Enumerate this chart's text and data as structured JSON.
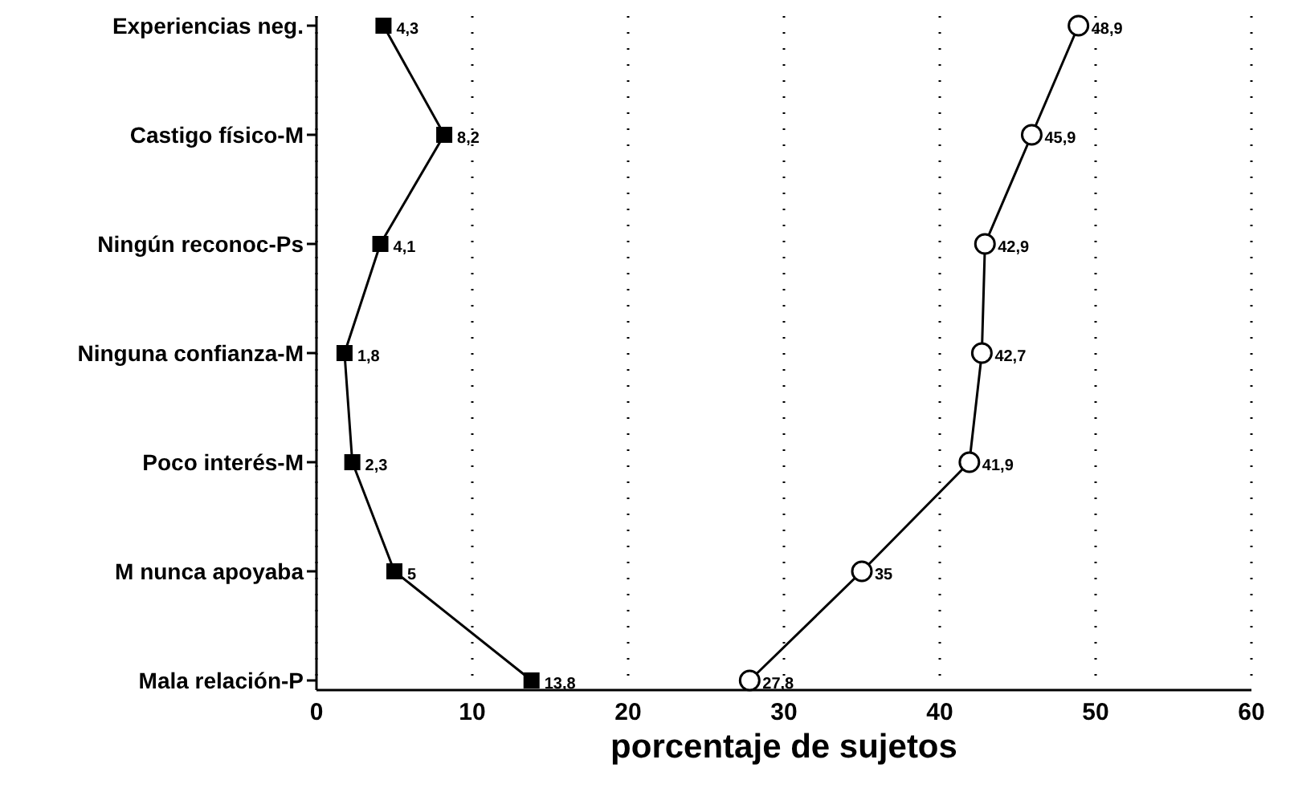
{
  "chart_data": {
    "type": "line",
    "orientation": "horizontal",
    "xlabel": "porcentaje de sujetos",
    "categories": [
      "Experiencias neg.",
      "Castigo físico-M",
      "Ningún reconoc-Ps",
      "Ninguna confianza-M",
      "Poco interés-M",
      "M nunca apoyaba",
      "Mala relación-P"
    ],
    "series": [
      {
        "color": "#000000",
        "marker": "square",
        "values": [
          4.3,
          8.2,
          4.1,
          1.8,
          2.3,
          5,
          13.8
        ],
        "value_labels": [
          "4,3",
          "8,2",
          "4,1",
          "1,8",
          "2,3",
          "5",
          "13,8"
        ]
      },
      {
        "color": "#000000",
        "marker": "circle",
        "values": [
          48.9,
          45.9,
          42.9,
          42.7,
          41.9,
          35,
          27.8
        ],
        "value_labels": [
          "48,9",
          "45,9",
          "42,9",
          "42,7",
          "41,9",
          "35",
          "27,8"
        ]
      }
    ],
    "xlim": [
      0,
      60
    ],
    "xticks": [
      0,
      10,
      20,
      30,
      40,
      50,
      60
    ],
    "grid": "x",
    "line_style": "solid"
  }
}
